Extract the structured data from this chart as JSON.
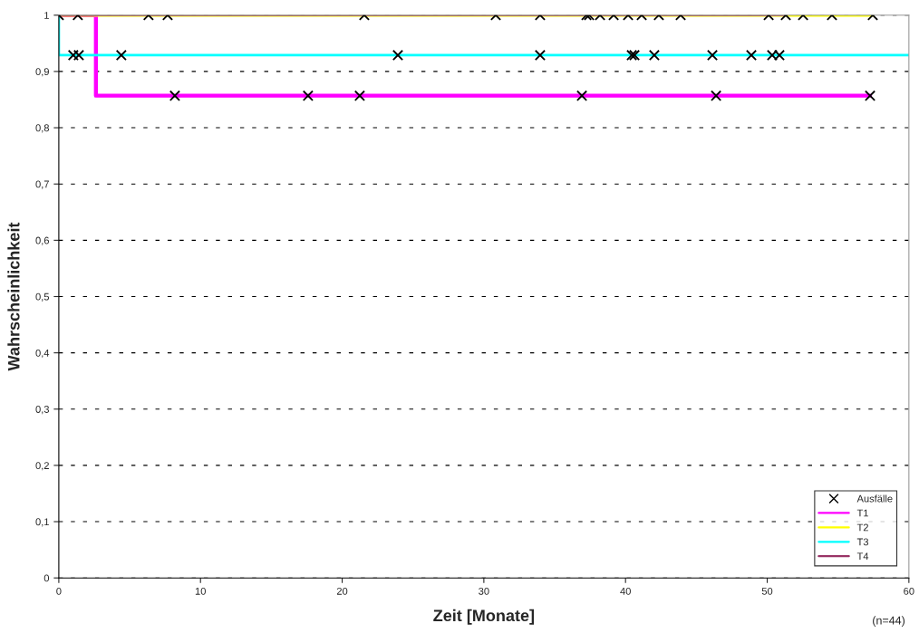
{
  "chart_data": {
    "type": "step",
    "xlabel": "Zeit [Monate]",
    "ylabel": "Wahrscheinlichkeit",
    "xlim": [
      0,
      60
    ],
    "xticks": [
      0,
      10,
      20,
      30,
      40,
      50,
      60
    ],
    "ylim": [
      0,
      1
    ],
    "yticks": [
      0,
      {
        "value": 0.1,
        "label": "0,1"
      },
      {
        "value": 0.2,
        "label": "0,2"
      },
      {
        "value": 0.3,
        "label": "0,3"
      },
      {
        "value": 0.4,
        "label": "0,4"
      },
      {
        "value": 0.5,
        "label": "0,5"
      },
      {
        "value": 0.6,
        "label": "0,6"
      },
      {
        "value": 0.7,
        "label": "0,7"
      },
      {
        "value": 0.8,
        "label": "0,8"
      },
      {
        "value": 0.9,
        "label": "0,9"
      },
      1
    ],
    "grid": "y",
    "legend": "bottom right",
    "annotations": [
      "(n=44)"
    ],
    "series": [
      {
        "name": "Ausfälle",
        "type": "scatter",
        "marker": "cross",
        "color": "#000000",
        "x": [
          0,
          1.34,
          6.33,
          7.68,
          21.56,
          30.84,
          33.97,
          37.24,
          37.43,
          38.2,
          39.16,
          40.18,
          41.14,
          42.35,
          43.89,
          50.1,
          51.31,
          52.53,
          54.57,
          57.45,
          1.02,
          1.41,
          4.41,
          23.93,
          33.97,
          40.44,
          40.63,
          42.03,
          46.13,
          48.88,
          50.35,
          50.86,
          8.19,
          17.59,
          21.24,
          36.92,
          46.39,
          57.26
        ],
        "values": [
          1,
          1,
          1,
          1,
          1,
          1,
          1,
          1,
          1,
          1,
          1,
          1,
          1,
          1,
          1,
          1,
          1,
          1,
          1,
          1,
          0.929,
          0.929,
          0.929,
          0.929,
          0.929,
          0.929,
          0.929,
          0.929,
          0.929,
          0.929,
          0.929,
          0.929,
          0.857,
          0.857,
          0.857,
          0.857,
          0.857,
          0.857
        ]
      },
      {
        "name": "T1",
        "color": "#ff00ff",
        "x": [
          0,
          2.62,
          57.26
        ],
        "values": [
          1,
          0.857,
          0.857
        ]
      },
      {
        "name": "T2",
        "color": "#ffff00",
        "x": [
          0,
          57.45
        ],
        "values": [
          1,
          1
        ]
      },
      {
        "name": "T3",
        "color": "#00ffff",
        "x": [
          0,
          0,
          60
        ],
        "values": [
          1,
          0.929,
          0.929
        ]
      },
      {
        "name": "T4",
        "color": "#993366",
        "x": [
          0,
          51.2
        ],
        "values": [
          1,
          1
        ]
      }
    ]
  }
}
